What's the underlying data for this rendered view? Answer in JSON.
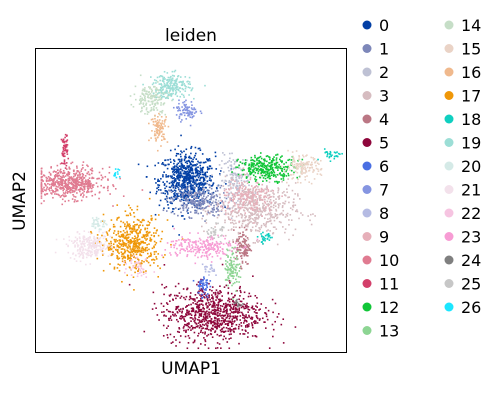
{
  "chart_data": {
    "type": "scatter",
    "title": "leiden",
    "xlabel": "UMAP1",
    "ylabel": "UMAP2",
    "grid": false,
    "legend_position": "right",
    "ticks": "none",
    "series": [
      {
        "name": "0",
        "color": "#023fa5",
        "clusters": [
          {
            "x": 0.485,
            "y": 0.57,
            "sx": 0.045,
            "sy": 0.045,
            "n": 700
          }
        ]
      },
      {
        "name": "1",
        "color": "#7d87b9",
        "clusters": [
          {
            "x": 0.52,
            "y": 0.5,
            "sx": 0.045,
            "sy": 0.025,
            "n": 250
          }
        ]
      },
      {
        "name": "2",
        "color": "#bec1d4",
        "clusters": [
          {
            "x": 0.64,
            "y": 0.57,
            "sx": 0.025,
            "sy": 0.04,
            "n": 160
          }
        ]
      },
      {
        "name": "3",
        "color": "#d6bcc0",
        "clusters": [
          {
            "x": 0.705,
            "y": 0.47,
            "sx": 0.065,
            "sy": 0.045,
            "n": 500
          }
        ]
      },
      {
        "name": "4",
        "color": "#bb7784",
        "clusters": [
          {
            "x": 0.665,
            "y": 0.35,
            "sx": 0.012,
            "sy": 0.03,
            "n": 110
          }
        ]
      },
      {
        "name": "5",
        "color": "#8e063b",
        "clusters": [
          {
            "x": 0.57,
            "y": 0.13,
            "sx": 0.08,
            "sy": 0.045,
            "n": 850
          }
        ]
      },
      {
        "name": "6",
        "color": "#4a6fe3",
        "clusters": [
          {
            "x": 0.535,
            "y": 0.22,
            "sx": 0.01,
            "sy": 0.02,
            "n": 50
          }
        ]
      },
      {
        "name": "7",
        "color": "#8595e1",
        "clusters": [
          {
            "x": 0.485,
            "y": 0.8,
            "sx": 0.018,
            "sy": 0.016,
            "n": 80
          }
        ]
      },
      {
        "name": "8",
        "color": "#b5bbe3",
        "clusters": [
          {
            "x": 0.555,
            "y": 0.27,
            "sx": 0.01,
            "sy": 0.01,
            "n": 20
          }
        ]
      },
      {
        "name": "9",
        "color": "#e6afb9",
        "clusters": [
          {
            "x": 0.685,
            "y": 0.51,
            "sx": 0.045,
            "sy": 0.03,
            "n": 200
          }
        ]
      },
      {
        "name": "10",
        "color": "#e07b91",
        "clusters": [
          {
            "x": 0.105,
            "y": 0.56,
            "sx": 0.055,
            "sy": 0.025,
            "n": 550
          }
        ]
      },
      {
        "name": "11",
        "color": "#d33f6a",
        "clusters": [
          {
            "x": 0.09,
            "y": 0.67,
            "sx": 0.005,
            "sy": 0.025,
            "n": 60
          }
        ]
      },
      {
        "name": "12",
        "color": "#11c638",
        "clusters": [
          {
            "x": 0.745,
            "y": 0.61,
            "sx": 0.045,
            "sy": 0.02,
            "n": 300
          }
        ]
      },
      {
        "name": "13",
        "color": "#8dd593",
        "clusters": [
          {
            "x": 0.63,
            "y": 0.28,
            "sx": 0.012,
            "sy": 0.035,
            "n": 100
          }
        ]
      },
      {
        "name": "14",
        "color": "#c6dec7",
        "clusters": [
          {
            "x": 0.37,
            "y": 0.84,
            "sx": 0.028,
            "sy": 0.025,
            "n": 170
          }
        ]
      },
      {
        "name": "15",
        "color": "#ead3c6",
        "clusters": [
          {
            "x": 0.855,
            "y": 0.61,
            "sx": 0.03,
            "sy": 0.02,
            "n": 140
          }
        ]
      },
      {
        "name": "16",
        "color": "#f0b98d",
        "clusters": [
          {
            "x": 0.395,
            "y": 0.74,
            "sx": 0.014,
            "sy": 0.022,
            "n": 90
          }
        ]
      },
      {
        "name": "17",
        "color": "#ef9708",
        "clusters": [
          {
            "x": 0.31,
            "y": 0.36,
            "sx": 0.045,
            "sy": 0.045,
            "n": 500
          }
        ]
      },
      {
        "name": "18",
        "color": "#0fcfc0",
        "clusters": [
          {
            "x": 0.74,
            "y": 0.38,
            "sx": 0.012,
            "sy": 0.01,
            "n": 30
          },
          {
            "x": 0.95,
            "y": 0.655,
            "sx": 0.02,
            "sy": 0.01,
            "n": 30
          }
        ]
      },
      {
        "name": "19",
        "color": "#9cded6",
        "clusters": [
          {
            "x": 0.435,
            "y": 0.88,
            "sx": 0.03,
            "sy": 0.02,
            "n": 200
          }
        ]
      },
      {
        "name": "20",
        "color": "#d5eae7",
        "clusters": [
          {
            "x": 0.2,
            "y": 0.43,
            "sx": 0.012,
            "sy": 0.012,
            "n": 40
          }
        ]
      },
      {
        "name": "21",
        "color": "#f3e1eb",
        "clusters": [
          {
            "x": 0.17,
            "y": 0.35,
            "sx": 0.035,
            "sy": 0.02,
            "n": 250
          }
        ]
      },
      {
        "name": "22",
        "color": "#f6c4e1",
        "clusters": [
          {
            "x": 0.33,
            "y": 0.29,
            "sx": 0.018,
            "sy": 0.02,
            "n": 40
          }
        ]
      },
      {
        "name": "23",
        "color": "#f79cd4",
        "clusters": [
          {
            "x": 0.53,
            "y": 0.35,
            "sx": 0.055,
            "sy": 0.02,
            "n": 220
          }
        ]
      },
      {
        "name": "24",
        "color": "#7f7f7f",
        "clusters": [
          {
            "x": 0.65,
            "y": 0.16,
            "sx": 0.006,
            "sy": 0.006,
            "n": 15
          }
        ]
      },
      {
        "name": "25",
        "color": "#c7c7c7",
        "clusters": [
          {
            "x": 0.575,
            "y": 0.4,
            "sx": 0.012,
            "sy": 0.012,
            "n": 40
          }
        ]
      },
      {
        "name": "26",
        "color": "#1ce6ff",
        "clusters": [
          {
            "x": 0.255,
            "y": 0.59,
            "sx": 0.006,
            "sy": 0.008,
            "n": 15
          }
        ]
      }
    ]
  }
}
